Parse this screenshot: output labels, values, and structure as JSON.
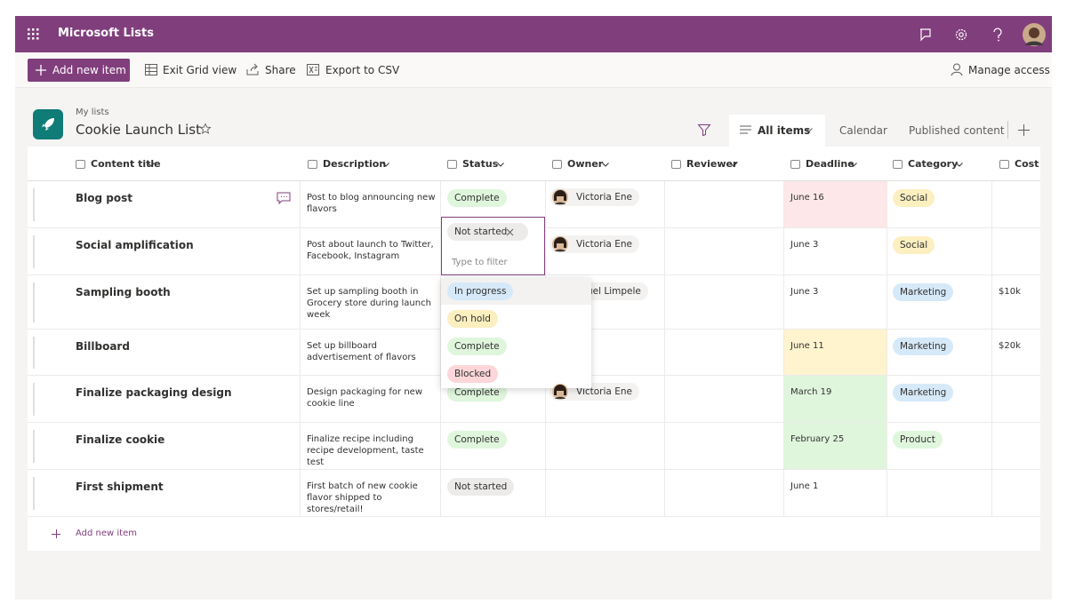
{
  "app": {
    "title": "Microsoft Lists"
  },
  "toolbar": {
    "add": "Add new item",
    "grid": "Exit Grid view",
    "share": "Share",
    "export": "Export to CSV",
    "manage": "Manage access"
  },
  "list": {
    "breadcrumb": "My lists",
    "title": "Cookie Launch List"
  },
  "views": [
    "All items",
    "Calendar",
    "Published content"
  ],
  "table": {
    "columns": [
      "Content title",
      "Description",
      "Status",
      "Owner",
      "Reviewer",
      "Deadline",
      "Category",
      "Cost"
    ],
    "rows": [
      {
        "title": "Blog post",
        "description": "Post to blog announcing new flavors",
        "status": {
          "text": "Complete",
          "color": "#dff6dd"
        },
        "owner": "Victoria Ene",
        "deadline": {
          "text": "June 16",
          "color": "#fde7e9"
        },
        "category": {
          "text": "Social",
          "color": "#fcefc0"
        }
      },
      {
        "title": "Social amplification",
        "description": "Post about launch to Twitter, Facebook, Instagram",
        "owner": "Victoria Ene",
        "deadline": {
          "text": "June 3"
        },
        "category": {
          "text": "Social",
          "color": "#fcefc0"
        }
      },
      {
        "title": "Sampling booth",
        "description": "Set up sampling booth in Grocery store during launch week",
        "owner_partial": "uel Limpele",
        "deadline": {
          "text": "June 3"
        },
        "category": {
          "text": "Marketing",
          "color": "#d6e9f8"
        },
        "cost": "$10k"
      },
      {
        "title": "Billboard",
        "description": "Set up billboard advertisement of flavors",
        "deadline": {
          "text": "June 11",
          "color": "#fff4ce"
        },
        "category": {
          "text": "Marketing",
          "color": "#d6e9f8"
        },
        "cost": "$20k"
      },
      {
        "title": "Finalize packaging design",
        "description": "Design packaging for new cookie line",
        "status": {
          "text": "Complete",
          "color": "#dff6dd"
        },
        "owner": "Victoria Ene",
        "deadline": {
          "text": "March 19",
          "color": "#dff6dd"
        },
        "category": {
          "text": "Marketing",
          "color": "#d6e9f8"
        }
      },
      {
        "title": "Finalize cookie",
        "description": "Finalize recipe including recipe development, taste test",
        "status": {
          "text": "Complete",
          "color": "#dff6dd"
        },
        "deadline": {
          "text": "February 25",
          "color": "#dff6dd"
        },
        "category": {
          "text": "Product",
          "color": "#dff6dd"
        }
      },
      {
        "title": "First shipment",
        "description": "First batch of new cookie flavor shipped to stores/retail!",
        "status": {
          "text": "Not started",
          "color": "#edebe9"
        },
        "deadline": {
          "text": "June 1"
        }
      }
    ],
    "add_row": "Add new item"
  },
  "filter": {
    "selected": "Not started",
    "placeholder": "Type to filter",
    "options": [
      {
        "text": "In progress",
        "color": "#d6e9f8"
      },
      {
        "text": "On hold",
        "color": "#fcefc0"
      },
      {
        "text": "Complete",
        "color": "#dff6dd"
      },
      {
        "text": "Blocked",
        "color": "#fcd6d9"
      }
    ]
  }
}
